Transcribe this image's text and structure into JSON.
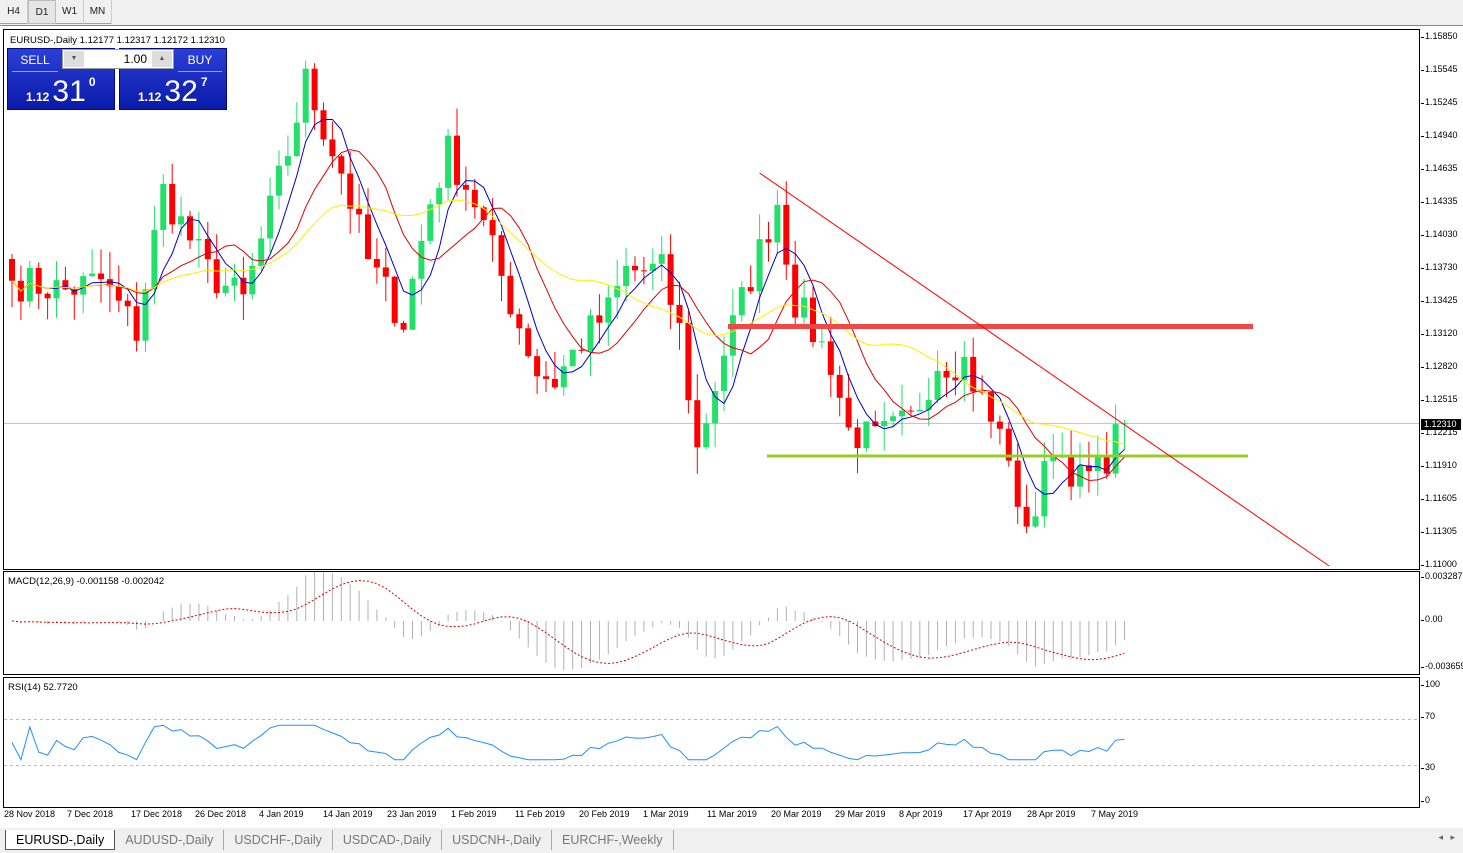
{
  "timeframes": [
    {
      "label": "H4",
      "active": false
    },
    {
      "label": "D1",
      "active": true
    },
    {
      "label": "W1",
      "active": false
    },
    {
      "label": "MN",
      "active": false
    }
  ],
  "chart": {
    "title": "EURUSD-,Daily  1.12177 1.12317 1.12172 1.12310",
    "current_price": "1.12310"
  },
  "trade_panel": {
    "sell_label": "SELL",
    "buy_label": "BUY",
    "lot": "1.00",
    "sell_prefix": "1.12",
    "sell_big": "31",
    "sell_sup": "0",
    "buy_prefix": "1.12",
    "buy_big": "32",
    "buy_sup": "7"
  },
  "price_axis": [
    "1.15850",
    "1.15545",
    "1.15245",
    "1.14940",
    "1.14635",
    "1.14335",
    "1.14030",
    "1.13730",
    "1.13425",
    "1.13120",
    "1.12820",
    "1.12515",
    "1.12215",
    "1.11910",
    "1.11605",
    "1.11305",
    "1.11000"
  ],
  "macd": {
    "label": "MACD(12,26,9) -0.001158 -0.002042",
    "axis": [
      "0.003287",
      "0.00",
      "-0.003659"
    ]
  },
  "rsi": {
    "label": "RSI(14) 52.7720",
    "axis": [
      "100",
      "70",
      "30",
      "0"
    ]
  },
  "dates": [
    "28 Nov 2018",
    "7 Dec 2018",
    "17 Dec 2018",
    "26 Dec 2018",
    "4 Jan 2019",
    "14 Jan 2019",
    "23 Jan 2019",
    "1 Feb 2019",
    "11 Feb 2019",
    "20 Feb 2019",
    "1 Mar 2019",
    "11 Mar 2019",
    "20 Mar 2019",
    "29 Mar 2019",
    "8 Apr 2019",
    "17 Apr 2019",
    "28 Apr 2019",
    "7 May 2019"
  ],
  "tabs": [
    {
      "label": "EURUSD-,Daily",
      "active": true
    },
    {
      "label": "AUDUSD-,Daily"
    },
    {
      "label": "USDCHF-,Daily"
    },
    {
      "label": "USDCAD-,Daily"
    },
    {
      "label": "USDCNH-,Daily"
    },
    {
      "label": "EURCHF-,Weekly"
    }
  ],
  "colors": {
    "bull": "#22e06a",
    "bear": "#ff0000",
    "ma_fast": "#0000cc",
    "ma_mid": "#e00000",
    "ma_slow": "#ffee00",
    "resistance": "#f04848",
    "support": "#99cc22",
    "rsi": "#1e90ff"
  },
  "chart_data": {
    "type": "candlestick",
    "approx_close_waypoints": [
      [
        0,
        1.1362
      ],
      [
        6,
        1.1353
      ],
      [
        10,
        1.1362
      ],
      [
        14,
        1.1316
      ],
      [
        17,
        1.1444
      ],
      [
        22,
        1.1371
      ],
      [
        26,
        1.1343
      ],
      [
        31,
        1.1481
      ],
      [
        33,
        1.1545
      ],
      [
        37,
        1.1463
      ],
      [
        40,
        1.138
      ],
      [
        44,
        1.1325
      ],
      [
        47,
        1.1435
      ],
      [
        49,
        1.1481
      ],
      [
        52,
        1.1435
      ],
      [
        56,
        1.1343
      ],
      [
        59,
        1.1279
      ],
      [
        61,
        1.127
      ],
      [
        64,
        1.1307
      ],
      [
        67,
        1.1334
      ],
      [
        69,
        1.1371
      ],
      [
        73,
        1.1371
      ],
      [
        75,
        1.1316
      ],
      [
        77,
        1.1206
      ],
      [
        80,
        1.1297
      ],
      [
        86,
        1.1435
      ],
      [
        88,
        1.1343
      ],
      [
        92,
        1.1288
      ],
      [
        94,
        1.1224
      ],
      [
        97,
        1.1215
      ],
      [
        101,
        1.1233
      ],
      [
        104,
        1.1288
      ],
      [
        107,
        1.1288
      ],
      [
        110,
        1.1233
      ],
      [
        112,
        1.1206
      ],
      [
        113,
        1.1141
      ],
      [
        115,
        1.115
      ],
      [
        117,
        1.1215
      ],
      [
        120,
        1.1178
      ],
      [
        122,
        1.1187
      ],
      [
        125,
        1.1231
      ]
    ],
    "resistance_level": 1.132,
    "support_level": 1.1201,
    "trendline": [
      [
        84,
        1.1461
      ],
      [
        148,
        1.11
      ]
    ],
    "indicators": [
      "MA fast",
      "MA mid",
      "MA slow",
      "MACD(12,26,9)",
      "RSI(14)"
    ]
  }
}
